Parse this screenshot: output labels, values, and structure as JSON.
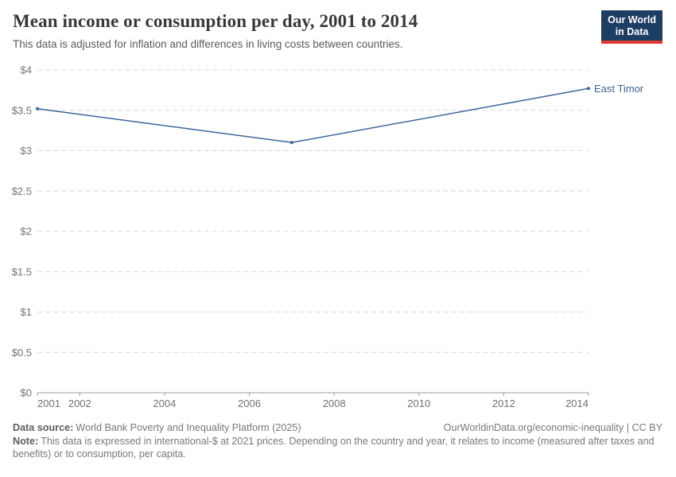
{
  "header": {
    "title": "Mean income or consumption per day, 2001 to 2014",
    "subtitle": "This data is adjusted for inflation and differences in living costs between countries.",
    "logo": {
      "line1": "Our World",
      "line2": "in Data"
    }
  },
  "chart_data": {
    "type": "line",
    "title": "Mean income or consumption per day, 2001 to 2014",
    "xlabel": "",
    "ylabel": "",
    "xlim": [
      2001,
      2014
    ],
    "ylim": [
      0,
      4
    ],
    "grid": "horizontal-dashed",
    "legend_position": "end-of-line-label",
    "x_ticks": [
      2001,
      2002,
      2004,
      2006,
      2008,
      2010,
      2012,
      2014
    ],
    "y_ticks": [
      {
        "value": 0,
        "label": "$0"
      },
      {
        "value": 0.5,
        "label": "$0.5"
      },
      {
        "value": 1,
        "label": "$1"
      },
      {
        "value": 1.5,
        "label": "$1.5"
      },
      {
        "value": 2,
        "label": "$2"
      },
      {
        "value": 2.5,
        "label": "$2.5"
      },
      {
        "value": 3,
        "label": "$3"
      },
      {
        "value": 3.5,
        "label": "$3.5"
      },
      {
        "value": 4,
        "label": "$4"
      }
    ],
    "series": [
      {
        "name": "East Timor",
        "color": "#3e6597",
        "points": [
          {
            "x": 2001,
            "y": 3.52
          },
          {
            "x": 2007,
            "y": 3.1
          },
          {
            "x": 2014,
            "y": 3.77
          }
        ]
      }
    ]
  },
  "footer": {
    "data_source_label": "Data source:",
    "data_source": "World Bank Poverty and Inequality Platform (2025)",
    "link": "OurWorldinData.org/economic-inequality | CC BY",
    "note_label": "Note:",
    "note": "This data is expressed in international-$ at 2021 prices. Depending on the country and year, it relates to income (measured after taxes and benefits) or to consumption, per capita."
  },
  "colors": {
    "line": "#3e6597",
    "logo_background": "#1d3d63",
    "logo_accent": "#dc3a2f",
    "gridline": "#d9d9d9",
    "axis": "#9e9e9e",
    "title_text": "#383838",
    "muted_text": "#787878"
  }
}
